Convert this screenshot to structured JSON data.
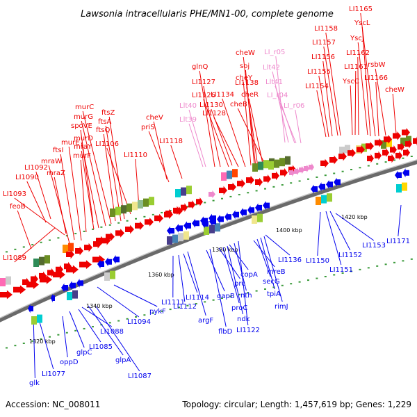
{
  "title": "Lawsonia intracellularis PHE/MN1-00, complete genome",
  "footer": {
    "accession": "Accession: NC_008011",
    "summary": "Topology: circular; Length: 1,457,619 bp; Genes: 1,229"
  },
  "colors": {
    "forward": "#ee0000",
    "reverse": "#0000ee",
    "rna": "#ee88cc",
    "backbone": "#888888"
  },
  "ticks": [
    "1320 kbp",
    "1340 kbp",
    "1360 kbp",
    "1380 kbp",
    "1400 kbp",
    "1420 kbp"
  ],
  "forward_labels": [
    "feoB",
    "LI1089",
    "LI1090",
    "LI1092",
    "LI1093",
    "mraZ",
    "mraW",
    "ftsI",
    "murE",
    "murF",
    "mraY",
    "murD",
    "spoVE",
    "murG",
    "murC",
    "ftsQ",
    "ftsA",
    "ftsZ",
    "LI1106",
    "LI1110",
    "priS",
    "cheV",
    "LI1118",
    "glnQ",
    "LI1127",
    "LI1126",
    "LI1130",
    "LI1128",
    "LI1134",
    "cheY",
    "cheW",
    "soj",
    "LI1138",
    "cheR",
    "cheB",
    "LI1154",
    "LI1155",
    "LI1156",
    "LI1157",
    "LI1158",
    "LI1165",
    "YscL",
    "YscJ",
    "LI1162",
    "LI1161",
    "rsbW",
    "YscC",
    "LI1166",
    "cheW"
  ],
  "rna_labels": [
    "Llt40",
    "Llt39",
    "LI_r05",
    "Llt42",
    "Llt41",
    "LI_r04",
    "LI_r06"
  ],
  "reverse_labels": [
    "glk",
    "LI1077",
    "oppD",
    "glpC",
    "LI1085",
    "LI1088",
    "glpA",
    "LI1087",
    "LI1094",
    "pykF",
    "LI1111",
    "LI1112",
    "LI1114",
    "argF",
    "gapB",
    "flbD",
    "prc",
    "proC",
    "ndk",
    "copA",
    "nth",
    "LI1122",
    "mreB",
    "secG",
    "tpiA",
    "rimJ",
    "LI1136",
    "LI1150",
    "LI1151",
    "LI1152",
    "LI1153",
    "LI1171"
  ]
}
